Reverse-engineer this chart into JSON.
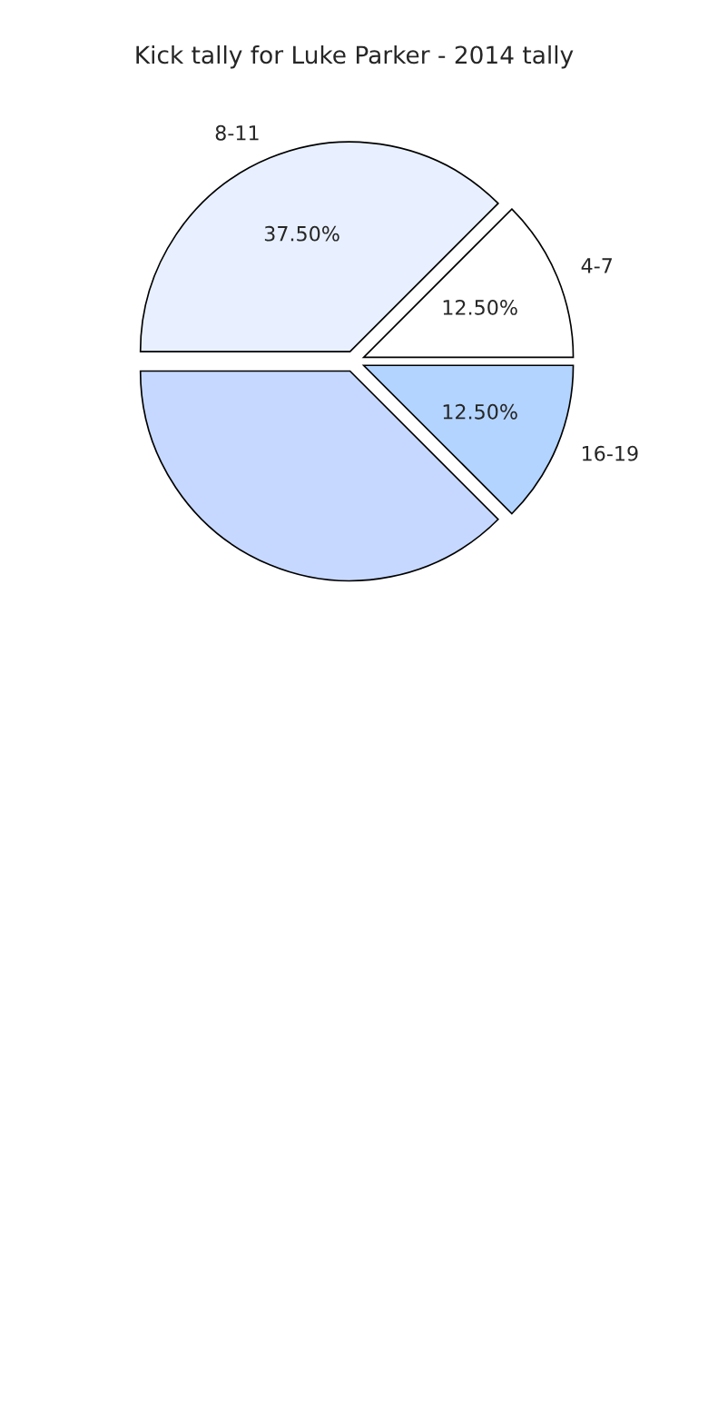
{
  "chart_data": {
    "type": "pie",
    "title": "Kick tally for Luke Parker - 2014 tally",
    "categories": [
      "4-7",
      "8-11",
      null,
      "16-19"
    ],
    "values": [
      12.5,
      37.5,
      37.5,
      12.5
    ],
    "value_labels": [
      "12.50%",
      "37.50%",
      null,
      "12.50%"
    ],
    "colors": [
      "#ffffff",
      "#e8f0ff",
      "#c6d8ff",
      "#b3d4ff"
    ]
  }
}
